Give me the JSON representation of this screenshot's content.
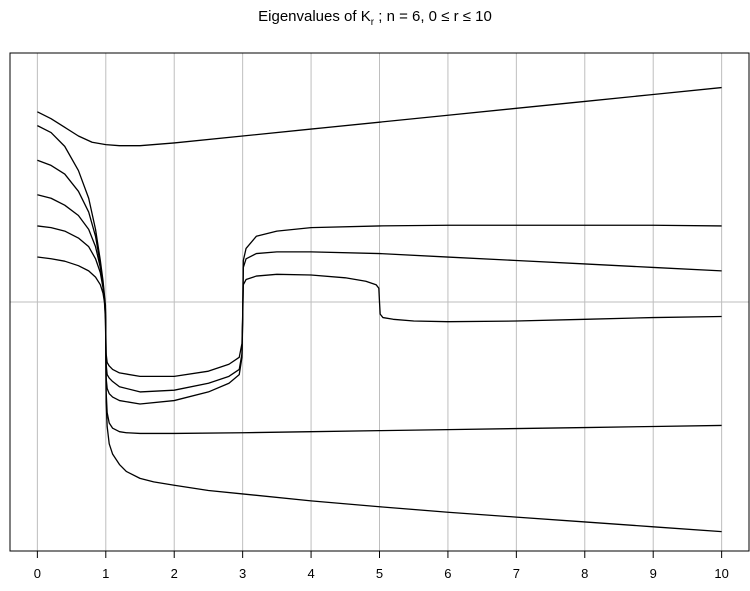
{
  "chart_data": {
    "type": "line",
    "title": {
      "prefix": "Eigenvalues of K",
      "subscript": "r",
      "suffix": " ; n = 6, 0 ≤ r ≤ 10"
    },
    "xlabel": "",
    "ylabel": "",
    "xlim": [
      -0.4,
      10.4
    ],
    "ylim": [
      -7.2,
      7.2
    ],
    "x_ticks": [
      "0",
      "1",
      "2",
      "3",
      "4",
      "5",
      "6",
      "7",
      "8",
      "9",
      "10"
    ],
    "grid": true,
    "vertical_gridlines_at": [
      0,
      1,
      2,
      3,
      4,
      5,
      6,
      7,
      8,
      9,
      10
    ],
    "horizontal_reference_line": 0,
    "colors": {
      "line": "#000000",
      "grid": "#bebebe",
      "axes": "#000000"
    },
    "series": [
      {
        "x": [
          0,
          0.2,
          0.4,
          0.6,
          0.8,
          1.0,
          1.2,
          1.5,
          2,
          3,
          4,
          5,
          6,
          7,
          8,
          9,
          10
        ],
        "y": [
          5.5,
          5.3,
          5.05,
          4.8,
          4.62,
          4.55,
          4.52,
          4.52,
          4.6,
          4.8,
          5.0,
          5.2,
          5.4,
          5.6,
          5.8,
          6.0,
          6.2
        ]
      },
      {
        "x": [
          0,
          0.2,
          0.4,
          0.6,
          0.75,
          0.85,
          0.92,
          0.96,
          0.98,
          0.995,
          1.0,
          1.005,
          1.02,
          1.05,
          1.1,
          1.2,
          1.5,
          2,
          2.5,
          2.8,
          2.95,
          2.99,
          3.0,
          3.01,
          3.05,
          3.2,
          3.5,
          4,
          5,
          6,
          7,
          8,
          9,
          10
        ],
        "y": [
          5.1,
          4.9,
          4.5,
          3.8,
          3.0,
          2.1,
          1.2,
          0.6,
          0.2,
          -0.1,
          -0.8,
          -1.5,
          -1.75,
          -1.85,
          -1.95,
          -2.05,
          -2.15,
          -2.15,
          -2.0,
          -1.8,
          -1.6,
          -1.2,
          -0.4,
          1.2,
          1.55,
          1.9,
          2.05,
          2.15,
          2.2,
          2.22,
          2.22,
          2.22,
          2.22,
          2.2
        ]
      },
      {
        "x": [
          0,
          0.2,
          0.4,
          0.6,
          0.75,
          0.85,
          0.92,
          0.96,
          0.98,
          0.995,
          1.0,
          1.005,
          1.02,
          1.05,
          1.1,
          1.2,
          1.5,
          2,
          2.5,
          2.8,
          2.95,
          2.99,
          3.0,
          3.01,
          3.05,
          3.2,
          3.5,
          4,
          5,
          6,
          7,
          8,
          9,
          10
        ],
        "y": [
          4.1,
          3.95,
          3.7,
          3.2,
          2.6,
          1.9,
          1.1,
          0.5,
          0.1,
          -0.2,
          -0.9,
          -1.8,
          -2.1,
          -2.2,
          -2.3,
          -2.45,
          -2.6,
          -2.55,
          -2.35,
          -2.15,
          -1.95,
          -1.5,
          -0.5,
          1.0,
          1.25,
          1.4,
          1.45,
          1.45,
          1.4,
          1.3,
          1.2,
          1.1,
          1.0,
          0.9
        ]
      },
      {
        "x": [
          0,
          0.2,
          0.4,
          0.6,
          0.75,
          0.85,
          0.92,
          0.96,
          0.98,
          0.995,
          1.0,
          1.005,
          1.02,
          1.05,
          1.1,
          1.2,
          1.5,
          2,
          2.5,
          2.8,
          2.95,
          2.99,
          3.0,
          3.01,
          3.05,
          3.2,
          3.5,
          4,
          4.5,
          4.8,
          4.95,
          4.99,
          5.0,
          5.01,
          5.05,
          5.2,
          5.5,
          6,
          7,
          8,
          9,
          10
        ],
        "y": [
          3.1,
          3.0,
          2.8,
          2.5,
          2.1,
          1.6,
          1.0,
          0.5,
          0.1,
          -0.3,
          -1.0,
          -2.2,
          -2.5,
          -2.65,
          -2.75,
          -2.85,
          -2.95,
          -2.85,
          -2.6,
          -2.35,
          -2.1,
          -1.6,
          -0.6,
          0.5,
          0.65,
          0.75,
          0.8,
          0.78,
          0.7,
          0.6,
          0.5,
          0.4,
          0.0,
          -0.35,
          -0.45,
          -0.5,
          -0.55,
          -0.57,
          -0.55,
          -0.5,
          -0.45,
          -0.42
        ]
      },
      {
        "x": [
          0,
          0.2,
          0.4,
          0.6,
          0.75,
          0.85,
          0.92,
          0.96,
          0.98,
          0.995,
          1.0,
          1.005,
          1.02,
          1.05,
          1.1,
          1.2,
          1.3,
          1.5,
          2,
          3,
          4,
          5,
          6,
          7,
          8,
          9,
          10
        ],
        "y": [
          2.2,
          2.15,
          2.05,
          1.85,
          1.6,
          1.25,
          0.85,
          0.4,
          0.05,
          -0.4,
          -1.2,
          -2.6,
          -3.2,
          -3.5,
          -3.65,
          -3.75,
          -3.78,
          -3.8,
          -3.8,
          -3.78,
          -3.75,
          -3.72,
          -3.69,
          -3.66,
          -3.63,
          -3.6,
          -3.57
        ]
      },
      {
        "x": [
          0,
          0.2,
          0.4,
          0.6,
          0.75,
          0.85,
          0.92,
          0.96,
          0.98,
          0.995,
          1.0,
          1.005,
          1.02,
          1.05,
          1.1,
          1.2,
          1.3,
          1.5,
          1.7,
          2,
          2.5,
          3,
          4,
          5,
          6,
          7,
          8,
          9,
          10
        ],
        "y": [
          1.3,
          1.25,
          1.18,
          1.05,
          0.9,
          0.72,
          0.5,
          0.25,
          0.0,
          -0.5,
          -1.3,
          -2.9,
          -3.6,
          -4.1,
          -4.4,
          -4.7,
          -4.9,
          -5.1,
          -5.2,
          -5.3,
          -5.45,
          -5.55,
          -5.75,
          -5.92,
          -6.08,
          -6.22,
          -6.36,
          -6.5,
          -6.64
        ]
      }
    ]
  }
}
